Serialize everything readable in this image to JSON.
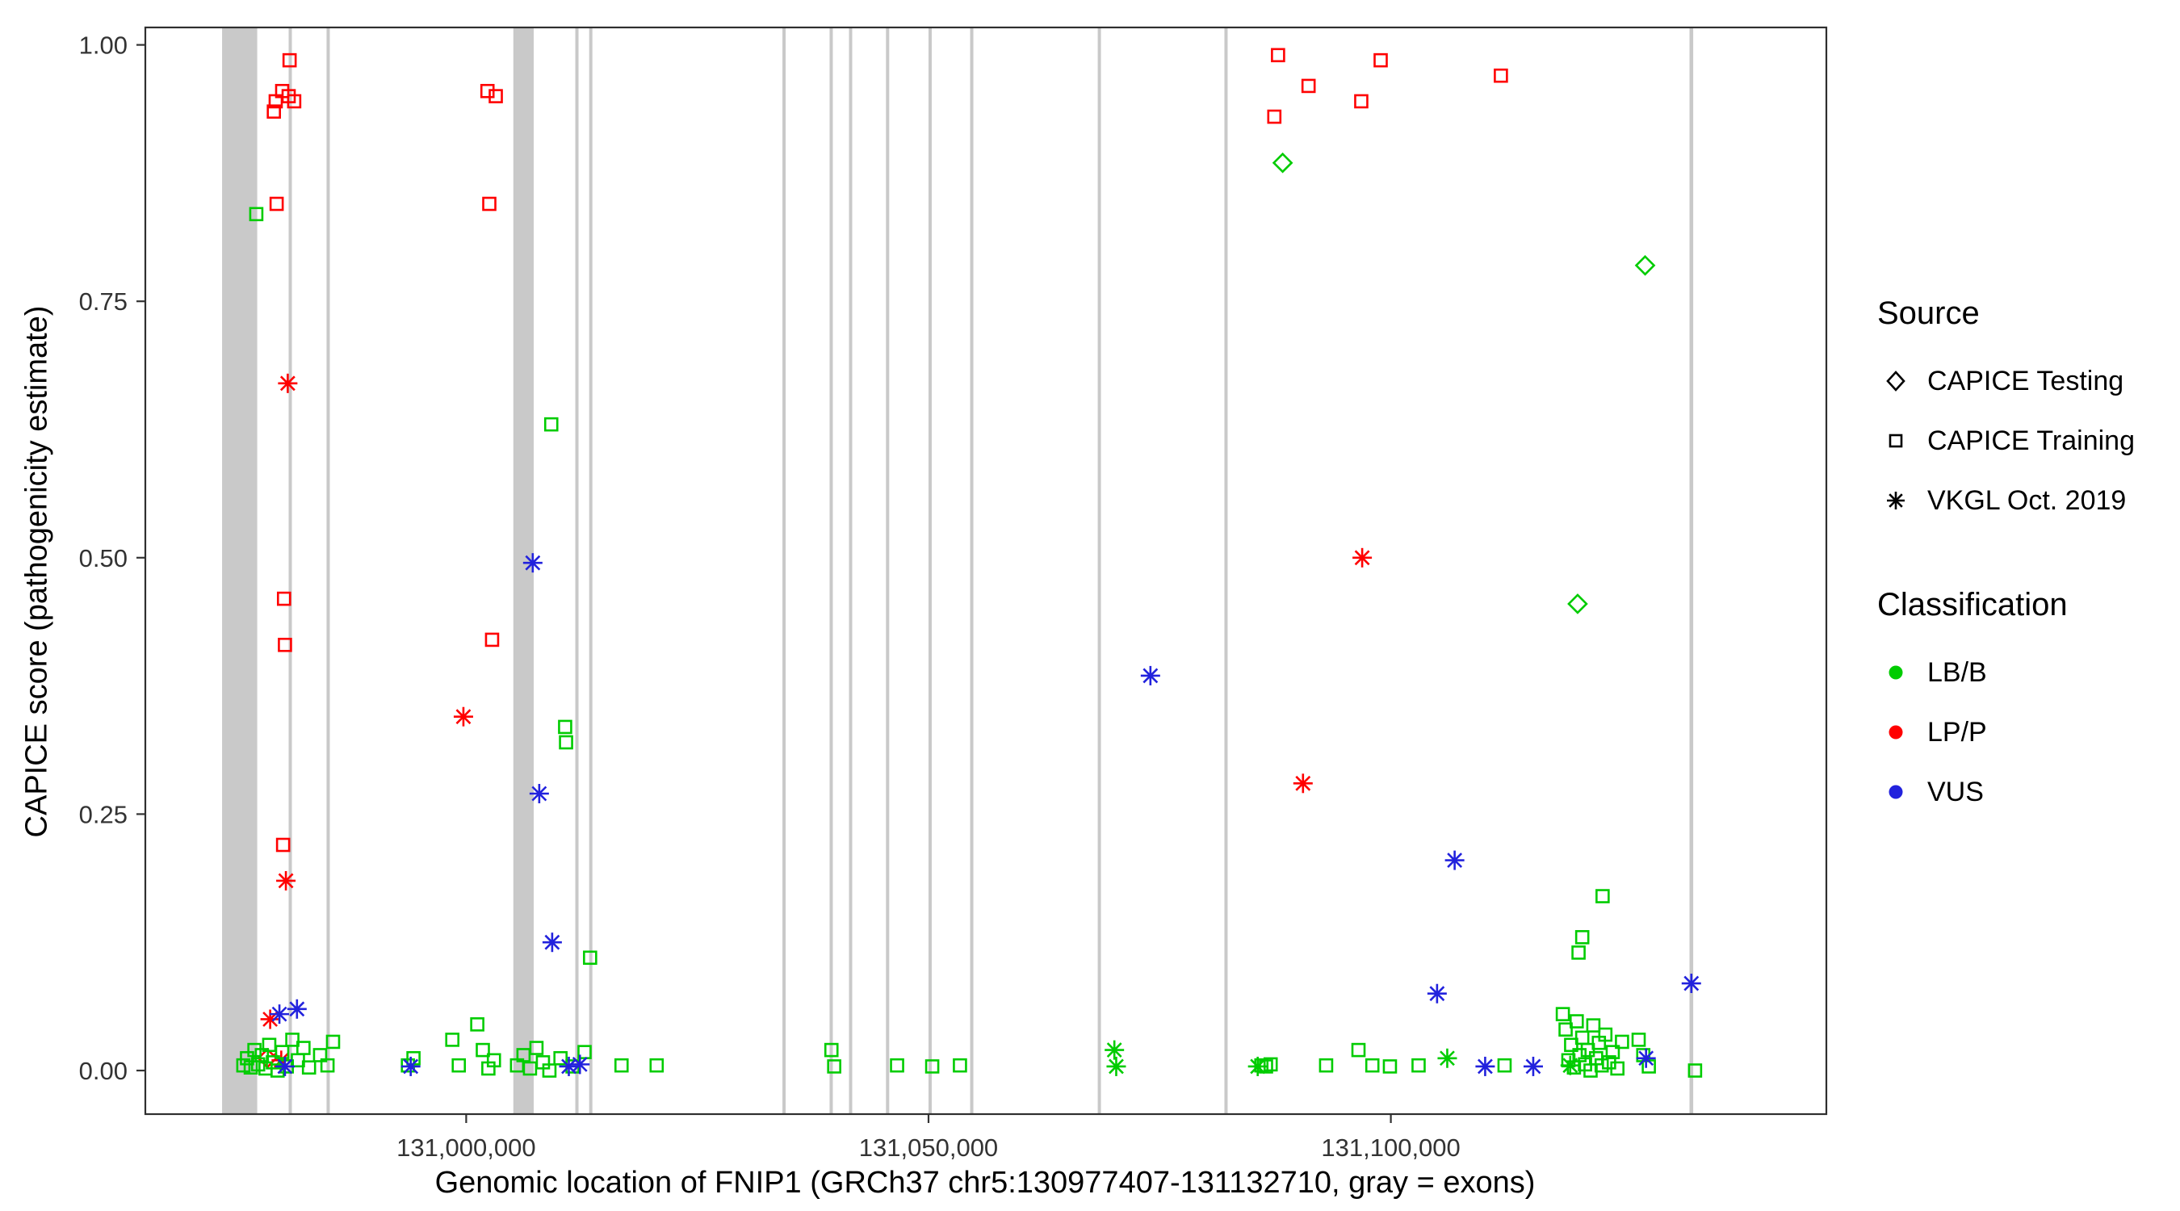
{
  "figure": {
    "y_axis_title": "CAPICE score (pathogenicity estimate)",
    "x_axis_title": "Genomic location of FNIP1 (GRCh37 chr5:130977407-131132710, gray = exons)"
  },
  "legend": {
    "source": {
      "title": "Source",
      "items": [
        {
          "label": "CAPICE Testing",
          "shape": "diamond"
        },
        {
          "label": "CAPICE Training",
          "shape": "square"
        },
        {
          "label": "VKGL Oct. 2019",
          "shape": "asterisk"
        }
      ]
    },
    "classification": {
      "title": "Classification",
      "items": [
        {
          "label": "LB/B"
        },
        {
          "label": "LP/P"
        },
        {
          "label": "VUS"
        }
      ]
    }
  },
  "chart_data": {
    "type": "scatter",
    "title": "",
    "xlabel": "Genomic location of FNIP1 (GRCh37 chr5:130977407-131132710, gray = exons)",
    "ylabel": "CAPICE score (pathogenicity estimate)",
    "xlim": [
      130965300,
      131147100
    ],
    "ylim": [
      -0.0425,
      1.017
    ],
    "x_ticks": [
      {
        "value": 131000000,
        "label": "131,000,000"
      },
      {
        "value": 131050000,
        "label": "131,050,000"
      },
      {
        "value": 131100000,
        "label": "131,100,000"
      }
    ],
    "y_ticks": [
      {
        "value": 1.0,
        "label": "1.00"
      },
      {
        "value": 0.75,
        "label": "0.75"
      },
      {
        "value": 0.5,
        "label": "0.50"
      },
      {
        "value": 0.25,
        "label": "0.25"
      },
      {
        "value": 0.0,
        "label": "0.00"
      }
    ],
    "colors": {
      "LB/B": "#00CC00",
      "LP/P": "#FF0000",
      "VUS": "#2222DD",
      "exon": "#C9C9C9"
    },
    "shape_by_source": {
      "testing": "diamond",
      "training": "square",
      "vkgl": "asterisk"
    },
    "exons": [
      [
        130973600,
        130977400
      ],
      [
        130980800,
        130981100
      ],
      [
        130984900,
        130985200
      ],
      [
        131005100,
        131007300
      ],
      [
        131011800,
        131012100
      ],
      [
        131013300,
        131013600
      ],
      [
        131034200,
        131034500
      ],
      [
        131039300,
        131039600
      ],
      [
        131041400,
        131041700
      ],
      [
        131045400,
        131045700
      ],
      [
        131050000,
        131050300
      ],
      [
        131054500,
        131054800
      ],
      [
        131068300,
        131068600
      ],
      [
        131082000,
        131082300
      ],
      [
        131132300,
        131132700
      ]
    ],
    "points_format": [
      "genomic_position",
      "capice_score",
      "source",
      "classification"
    ],
    "points": [
      [
        130980900,
        0.985,
        "training",
        "LP/P"
      ],
      [
        130980100,
        0.955,
        "training",
        "LP/P"
      ],
      [
        130980800,
        0.95,
        "training",
        "LP/P"
      ],
      [
        130979400,
        0.945,
        "training",
        "LP/P"
      ],
      [
        130981400,
        0.945,
        "training",
        "LP/P"
      ],
      [
        130979200,
        0.935,
        "training",
        "LP/P"
      ],
      [
        130979500,
        0.845,
        "training",
        "LP/P"
      ],
      [
        130980300,
        0.46,
        "training",
        "LP/P"
      ],
      [
        130980400,
        0.415,
        "training",
        "LP/P"
      ],
      [
        130980200,
        0.22,
        "training",
        "LP/P"
      ],
      [
        131002300,
        0.955,
        "training",
        "LP/P"
      ],
      [
        131003200,
        0.95,
        "training",
        "LP/P"
      ],
      [
        131002500,
        0.845,
        "training",
        "LP/P"
      ],
      [
        131002800,
        0.42,
        "training",
        "LP/P"
      ],
      [
        131087800,
        0.99,
        "training",
        "LP/P"
      ],
      [
        131087400,
        0.93,
        "training",
        "LP/P"
      ],
      [
        131091100,
        0.96,
        "training",
        "LP/P"
      ],
      [
        131098900,
        0.985,
        "training",
        "LP/P"
      ],
      [
        131096800,
        0.945,
        "training",
        "LP/P"
      ],
      [
        131111900,
        0.97,
        "training",
        "LP/P"
      ],
      [
        130980700,
        0.67,
        "vkgl",
        "LP/P"
      ],
      [
        130980500,
        0.185,
        "vkgl",
        "LP/P"
      ],
      [
        130978800,
        0.05,
        "vkgl",
        "LP/P"
      ],
      [
        130980000,
        0.01,
        "vkgl",
        "LP/P"
      ],
      [
        130999700,
        0.345,
        "vkgl",
        "LP/P"
      ],
      [
        131090500,
        0.28,
        "vkgl",
        "LP/P"
      ],
      [
        131096900,
        0.5,
        "vkgl",
        "LP/P"
      ],
      [
        130978500,
        0.012,
        "testing",
        "LP/P"
      ],
      [
        131088300,
        0.885,
        "testing",
        "LB/B"
      ],
      [
        131120200,
        0.455,
        "testing",
        "LB/B"
      ],
      [
        131127500,
        0.785,
        "testing",
        "LB/B"
      ],
      [
        131070100,
        0.02,
        "vkgl",
        "LB/B"
      ],
      [
        131070300,
        0.004,
        "vkgl",
        "LB/B"
      ],
      [
        131085600,
        0.004,
        "vkgl",
        "LB/B"
      ],
      [
        131106100,
        0.012,
        "vkgl",
        "LB/B"
      ],
      [
        131119400,
        0.005,
        "vkgl",
        "LB/B"
      ],
      [
        130977300,
        0.835,
        "training",
        "LB/B"
      ],
      [
        130975900,
        0.005,
        "training",
        "LB/B"
      ],
      [
        130976300,
        0.012,
        "training",
        "LB/B"
      ],
      [
        130976700,
        0.003,
        "training",
        "LB/B"
      ],
      [
        130977100,
        0.02,
        "training",
        "LB/B"
      ],
      [
        130977500,
        0.006,
        "training",
        "LB/B"
      ],
      [
        130977900,
        0.015,
        "training",
        "LB/B"
      ],
      [
        130978300,
        0.002,
        "training",
        "LB/B"
      ],
      [
        130978700,
        0.025,
        "training",
        "LB/B"
      ],
      [
        130979100,
        0.008,
        "training",
        "LB/B"
      ],
      [
        130979600,
        0.0,
        "training",
        "LB/B"
      ],
      [
        130980100,
        0.018,
        "training",
        "LB/B"
      ],
      [
        130980600,
        0.004,
        "training",
        "LB/B"
      ],
      [
        130981200,
        0.03,
        "training",
        "LB/B"
      ],
      [
        130981800,
        0.01,
        "training",
        "LB/B"
      ],
      [
        130982400,
        0.022,
        "training",
        "LB/B"
      ],
      [
        130983000,
        0.003,
        "training",
        "LB/B"
      ],
      [
        130984200,
        0.015,
        "training",
        "LB/B"
      ],
      [
        130985000,
        0.005,
        "training",
        "LB/B"
      ],
      [
        130985600,
        0.028,
        "training",
        "LB/B"
      ],
      [
        130993700,
        0.005,
        "training",
        "LB/B"
      ],
      [
        130994300,
        0.012,
        "training",
        "LB/B"
      ],
      [
        130998500,
        0.03,
        "training",
        "LB/B"
      ],
      [
        130999200,
        0.005,
        "training",
        "LB/B"
      ],
      [
        131001200,
        0.045,
        "training",
        "LB/B"
      ],
      [
        131001800,
        0.02,
        "training",
        "LB/B"
      ],
      [
        131002400,
        0.002,
        "training",
        "LB/B"
      ],
      [
        131003000,
        0.01,
        "training",
        "LB/B"
      ],
      [
        131009200,
        0.63,
        "training",
        "LB/B"
      ],
      [
        131010700,
        0.335,
        "training",
        "LB/B"
      ],
      [
        131010800,
        0.32,
        "training",
        "LB/B"
      ],
      [
        131013400,
        0.11,
        "training",
        "LB/B"
      ],
      [
        131005500,
        0.005,
        "training",
        "LB/B"
      ],
      [
        131006200,
        0.015,
        "training",
        "LB/B"
      ],
      [
        131006900,
        0.002,
        "training",
        "LB/B"
      ],
      [
        131007600,
        0.022,
        "training",
        "LB/B"
      ],
      [
        131008300,
        0.008,
        "training",
        "LB/B"
      ],
      [
        131009000,
        0.0,
        "training",
        "LB/B"
      ],
      [
        131010200,
        0.012,
        "training",
        "LB/B"
      ],
      [
        131011500,
        0.004,
        "training",
        "LB/B"
      ],
      [
        131012800,
        0.018,
        "training",
        "LB/B"
      ],
      [
        131016800,
        0.005,
        "training",
        "LB/B"
      ],
      [
        131020600,
        0.005,
        "training",
        "LB/B"
      ],
      [
        131039500,
        0.02,
        "training",
        "LB/B"
      ],
      [
        131039800,
        0.004,
        "training",
        "LB/B"
      ],
      [
        131046600,
        0.005,
        "training",
        "LB/B"
      ],
      [
        131050400,
        0.004,
        "training",
        "LB/B"
      ],
      [
        131053400,
        0.005,
        "training",
        "LB/B"
      ],
      [
        131086000,
        0.005,
        "training",
        "LB/B"
      ],
      [
        131086500,
        0.004,
        "training",
        "LB/B"
      ],
      [
        131087000,
        0.006,
        "training",
        "LB/B"
      ],
      [
        131093000,
        0.005,
        "training",
        "LB/B"
      ],
      [
        131096500,
        0.02,
        "training",
        "LB/B"
      ],
      [
        131098000,
        0.005,
        "training",
        "LB/B"
      ],
      [
        131099900,
        0.004,
        "training",
        "LB/B"
      ],
      [
        131103000,
        0.005,
        "training",
        "LB/B"
      ],
      [
        131112300,
        0.005,
        "training",
        "LB/B"
      ],
      [
        131118600,
        0.055,
        "training",
        "LB/B"
      ],
      [
        131118900,
        0.04,
        "training",
        "LB/B"
      ],
      [
        131119200,
        0.01,
        "training",
        "LB/B"
      ],
      [
        131119500,
        0.025,
        "training",
        "LB/B"
      ],
      [
        131119800,
        0.003,
        "training",
        "LB/B"
      ],
      [
        131120100,
        0.048,
        "training",
        "LB/B"
      ],
      [
        131120400,
        0.015,
        "training",
        "LB/B"
      ],
      [
        131120700,
        0.032,
        "training",
        "LB/B"
      ],
      [
        131121000,
        0.006,
        "training",
        "LB/B"
      ],
      [
        131121300,
        0.02,
        "training",
        "LB/B"
      ],
      [
        131121600,
        0.0,
        "training",
        "LB/B"
      ],
      [
        131121900,
        0.044,
        "training",
        "LB/B"
      ],
      [
        131122200,
        0.012,
        "training",
        "LB/B"
      ],
      [
        131122500,
        0.027,
        "training",
        "LB/B"
      ],
      [
        131122800,
        0.005,
        "training",
        "LB/B"
      ],
      [
        131123200,
        0.035,
        "training",
        "LB/B"
      ],
      [
        131123600,
        0.008,
        "training",
        "LB/B"
      ],
      [
        131124000,
        0.018,
        "training",
        "LB/B"
      ],
      [
        131124500,
        0.002,
        "training",
        "LB/B"
      ],
      [
        131125000,
        0.028,
        "training",
        "LB/B"
      ],
      [
        131120300,
        0.115,
        "training",
        "LB/B"
      ],
      [
        131120700,
        0.13,
        "training",
        "LB/B"
      ],
      [
        131122900,
        0.17,
        "training",
        "LB/B"
      ],
      [
        131126800,
        0.03,
        "training",
        "LB/B"
      ],
      [
        131127300,
        0.015,
        "training",
        "LB/B"
      ],
      [
        131127900,
        0.004,
        "training",
        "LB/B"
      ],
      [
        131132900,
        0.0,
        "training",
        "LB/B"
      ],
      [
        130981700,
        0.06,
        "vkgl",
        "VUS"
      ],
      [
        130979800,
        0.055,
        "vkgl",
        "VUS"
      ],
      [
        130980400,
        0.004,
        "vkgl",
        "VUS"
      ],
      [
        130994000,
        0.004,
        "vkgl",
        "VUS"
      ],
      [
        131007200,
        0.495,
        "vkgl",
        "VUS"
      ],
      [
        131007900,
        0.27,
        "vkgl",
        "VUS"
      ],
      [
        131009300,
        0.125,
        "vkgl",
        "VUS"
      ],
      [
        131011100,
        0.004,
        "vkgl",
        "VUS"
      ],
      [
        131012300,
        0.006,
        "vkgl",
        "VUS"
      ],
      [
        131074000,
        0.385,
        "vkgl",
        "VUS"
      ],
      [
        131105000,
        0.075,
        "vkgl",
        "VUS"
      ],
      [
        131106900,
        0.205,
        "vkgl",
        "VUS"
      ],
      [
        131110200,
        0.004,
        "vkgl",
        "VUS"
      ],
      [
        131115400,
        0.004,
        "vkgl",
        "VUS"
      ],
      [
        131127600,
        0.012,
        "vkgl",
        "VUS"
      ],
      [
        131132500,
        0.085,
        "vkgl",
        "VUS"
      ]
    ]
  }
}
